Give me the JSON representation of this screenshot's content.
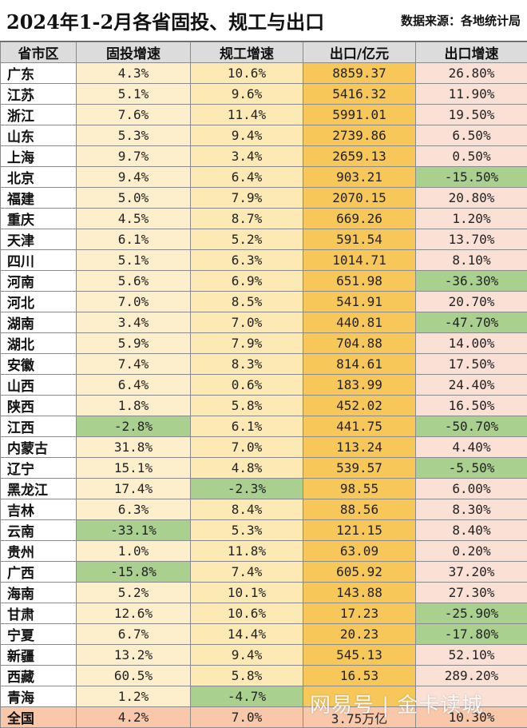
{
  "title": "2024年1-2月各省固投、规工与出口",
  "source": "数据来源：各地统计局",
  "headers": [
    "省市区",
    "固投增速",
    "规工增速",
    "出口/亿元",
    "出口增速"
  ],
  "rows": [
    {
      "province": "广东",
      "fai": "4.3%",
      "industrial": "10.6%",
      "exports": "8859.37",
      "export_growth": "26.80%"
    },
    {
      "province": "江苏",
      "fai": "5.1%",
      "industrial": "9.6%",
      "exports": "5416.32",
      "export_growth": "11.90%"
    },
    {
      "province": "浙江",
      "fai": "7.6%",
      "industrial": "11.4%",
      "exports": "5991.01",
      "export_growth": "19.50%"
    },
    {
      "province": "山东",
      "fai": "5.3%",
      "industrial": "9.4%",
      "exports": "2739.86",
      "export_growth": "6.50%"
    },
    {
      "province": "上海",
      "fai": "9.7%",
      "industrial": "3.4%",
      "exports": "2659.13",
      "export_growth": "0.50%"
    },
    {
      "province": "北京",
      "fai": "9.4%",
      "industrial": "6.4%",
      "exports": "903.21",
      "export_growth": "-15.50%"
    },
    {
      "province": "福建",
      "fai": "5.0%",
      "industrial": "7.9%",
      "exports": "2070.15",
      "export_growth": "20.80%"
    },
    {
      "province": "重庆",
      "fai": "4.5%",
      "industrial": "8.7%",
      "exports": "669.26",
      "export_growth": "1.20%"
    },
    {
      "province": "天津",
      "fai": "6.1%",
      "industrial": "5.2%",
      "exports": "591.54",
      "export_growth": "13.70%"
    },
    {
      "province": "四川",
      "fai": "5.1%",
      "industrial": "6.3%",
      "exports": "1014.71",
      "export_growth": "8.10%"
    },
    {
      "province": "河南",
      "fai": "5.6%",
      "industrial": "6.9%",
      "exports": "651.98",
      "export_growth": "-36.30%"
    },
    {
      "province": "河北",
      "fai": "7.0%",
      "industrial": "8.5%",
      "exports": "541.91",
      "export_growth": "20.70%"
    },
    {
      "province": "湖南",
      "fai": "3.4%",
      "industrial": "7.0%",
      "exports": "440.81",
      "export_growth": "-47.70%"
    },
    {
      "province": "湖北",
      "fai": "5.9%",
      "industrial": "7.9%",
      "exports": "704.88",
      "export_growth": "14.00%"
    },
    {
      "province": "安徽",
      "fai": "7.4%",
      "industrial": "8.3%",
      "exports": "814.61",
      "export_growth": "17.50%"
    },
    {
      "province": "山西",
      "fai": "6.4%",
      "industrial": "0.6%",
      "exports": "183.99",
      "export_growth": "24.40%"
    },
    {
      "province": "陕西",
      "fai": "1.8%",
      "industrial": "5.8%",
      "exports": "452.02",
      "export_growth": "16.50%"
    },
    {
      "province": "江西",
      "fai": "-2.8%",
      "industrial": "6.1%",
      "exports": "441.75",
      "export_growth": "-50.70%"
    },
    {
      "province": "内蒙古",
      "fai": "31.8%",
      "industrial": "7.0%",
      "exports": "113.24",
      "export_growth": "4.40%"
    },
    {
      "province": "辽宁",
      "fai": "15.1%",
      "industrial": "4.8%",
      "exports": "539.57",
      "export_growth": "-5.50%"
    },
    {
      "province": "黑龙江",
      "fai": "17.4%",
      "industrial": "-2.3%",
      "exports": "98.55",
      "export_growth": "6.00%"
    },
    {
      "province": "吉林",
      "fai": "6.3%",
      "industrial": "8.4%",
      "exports": "88.56",
      "export_growth": "8.30%"
    },
    {
      "province": "云南",
      "fai": "-33.1%",
      "industrial": "5.3%",
      "exports": "121.15",
      "export_growth": "8.40%"
    },
    {
      "province": "贵州",
      "fai": "1.0%",
      "industrial": "11.8%",
      "exports": "63.09",
      "export_growth": "0.20%"
    },
    {
      "province": "广西",
      "fai": "-15.8%",
      "industrial": "7.4%",
      "exports": "605.92",
      "export_growth": "37.20%"
    },
    {
      "province": "海南",
      "fai": "5.2%",
      "industrial": "10.1%",
      "exports": "143.88",
      "export_growth": "27.30%"
    },
    {
      "province": "甘肃",
      "fai": "12.6%",
      "industrial": "10.6%",
      "exports": "17.23",
      "export_growth": "-25.90%"
    },
    {
      "province": "宁夏",
      "fai": "6.7%",
      "industrial": "14.4%",
      "exports": "20.23",
      "export_growth": "-17.80%"
    },
    {
      "province": "新疆",
      "fai": "13.2%",
      "industrial": "9.4%",
      "exports": "545.13",
      "export_growth": "52.10%"
    },
    {
      "province": "西藏",
      "fai": "60.5%",
      "industrial": "5.8%",
      "exports": "16.53",
      "export_growth": "289.20%"
    },
    {
      "province": "青海",
      "fai": "1.2%",
      "industrial": "-4.7%",
      "exports": "",
      "export_growth": ""
    }
  ],
  "total": {
    "province": "全国",
    "fai": "4.2%",
    "industrial": "7.0%",
    "exports": "3.75万亿",
    "export_growth": "10.30%"
  },
  "watermark": "网易号 | 金卡读城",
  "colors": {
    "header_bg": "#dcdcdc",
    "fai_bg": "#fdefcb",
    "industrial_bg": "#fde9b4",
    "exports_bg": "#f7c859",
    "export_growth_bg": "#fbe0d5",
    "negative_bg": "#a9d08e",
    "total_bg": "#f9c7a9"
  }
}
